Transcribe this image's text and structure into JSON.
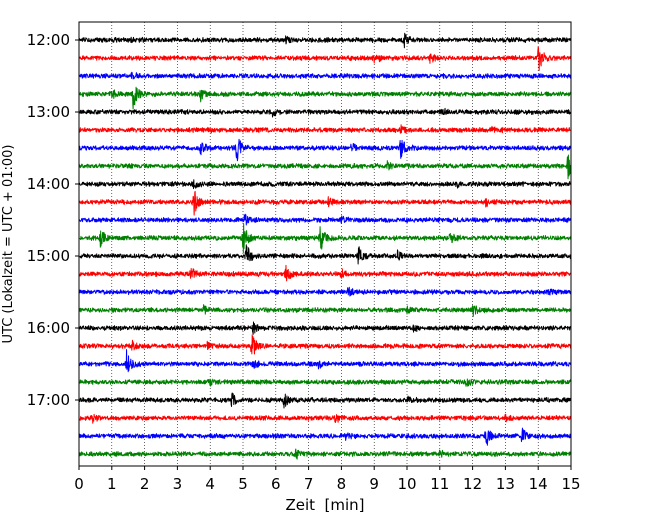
{
  "chart_data": {
    "type": "line",
    "title": "",
    "xlabel": "Zeit  [min]",
    "ylabel": "UTC (Lokalzeit = UTC + 01:00)",
    "xlim": [
      0,
      15
    ],
    "x_ticks": [
      "0",
      "1",
      "2",
      "3",
      "4",
      "5",
      "6",
      "7",
      "8",
      "9",
      "10",
      "11",
      "12",
      "13",
      "14",
      "15"
    ],
    "y_ticks": [
      "12:00",
      "13:00",
      "14:00",
      "15:00",
      "16:00",
      "17:00"
    ],
    "grid": "vertical dotted lines at each minute",
    "trace_interval_minutes": 15,
    "trace_color_cycle": [
      "#000000",
      "#ff0000",
      "#0000ff",
      "#008000"
    ],
    "series": [
      {
        "start": "12:00",
        "color": "#000000",
        "events": [
          {
            "t": 9.9,
            "amp": 0.45
          },
          {
            "t": 6.3,
            "amp": 0.25
          },
          {
            "t": 1.6,
            "amp": 0.2
          }
        ]
      },
      {
        "start": "12:15",
        "color": "#ff0000",
        "events": [
          {
            "t": 14.0,
            "amp": 1.0
          },
          {
            "t": 9.0,
            "amp": 0.35
          },
          {
            "t": 10.7,
            "amp": 0.3
          }
        ]
      },
      {
        "start": "12:30",
        "color": "#0000ff",
        "events": [
          {
            "t": 15.0,
            "amp": 0.55
          },
          {
            "t": 1.6,
            "amp": 0.2
          }
        ]
      },
      {
        "start": "12:45",
        "color": "#008000",
        "events": [
          {
            "t": 1.65,
            "amp": 1.0
          },
          {
            "t": 3.7,
            "amp": 0.5
          },
          {
            "t": 1.0,
            "amp": 0.3
          }
        ]
      },
      {
        "start": "13:00",
        "color": "#000000",
        "events": [
          {
            "t": 5.9,
            "amp": 0.25
          },
          {
            "t": 11.1,
            "amp": 0.2
          }
        ]
      },
      {
        "start": "13:15",
        "color": "#ff0000",
        "events": [
          {
            "t": 9.8,
            "amp": 0.3
          },
          {
            "t": 12.6,
            "amp": 0.25
          },
          {
            "t": 3.9,
            "amp": 0.2
          }
        ]
      },
      {
        "start": "13:30",
        "color": "#0000ff",
        "events": [
          {
            "t": 4.8,
            "amp": 1.0
          },
          {
            "t": 9.8,
            "amp": 0.8
          },
          {
            "t": 3.7,
            "amp": 0.45
          },
          {
            "t": 8.3,
            "amp": 0.3
          }
        ]
      },
      {
        "start": "13:45",
        "color": "#008000",
        "events": [
          {
            "t": 14.9,
            "amp": 1.0
          },
          {
            "t": 9.4,
            "amp": 0.3
          }
        ]
      },
      {
        "start": "14:00",
        "color": "#000000",
        "events": [
          {
            "t": 3.5,
            "amp": 0.35
          },
          {
            "t": 11.5,
            "amp": 0.2
          }
        ]
      },
      {
        "start": "14:15",
        "color": "#ff0000",
        "events": [
          {
            "t": 3.5,
            "amp": 0.8
          },
          {
            "t": 7.6,
            "amp": 0.3
          },
          {
            "t": 12.4,
            "amp": 0.25
          }
        ]
      },
      {
        "start": "14:30",
        "color": "#0000ff",
        "events": [
          {
            "t": 5.05,
            "amp": 0.4
          },
          {
            "t": 8.0,
            "amp": 0.2
          }
        ]
      },
      {
        "start": "14:45",
        "color": "#008000",
        "events": [
          {
            "t": 5.0,
            "amp": 1.0
          },
          {
            "t": 7.35,
            "amp": 0.9
          },
          {
            "t": 0.65,
            "amp": 0.6
          },
          {
            "t": 11.3,
            "amp": 0.4
          }
        ]
      },
      {
        "start": "15:00",
        "color": "#000000",
        "events": [
          {
            "t": 5.1,
            "amp": 0.8
          },
          {
            "t": 8.5,
            "amp": 0.7
          },
          {
            "t": 15.0,
            "amp": 0.5
          },
          {
            "t": 9.7,
            "amp": 0.3
          }
        ]
      },
      {
        "start": "15:15",
        "color": "#ff0000",
        "events": [
          {
            "t": 6.3,
            "amp": 0.55
          },
          {
            "t": 3.4,
            "amp": 0.4
          },
          {
            "t": 8.0,
            "amp": 0.3
          }
        ]
      },
      {
        "start": "15:30",
        "color": "#0000ff",
        "events": [
          {
            "t": 8.2,
            "amp": 0.25
          },
          {
            "t": 14.3,
            "amp": 0.2
          }
        ]
      },
      {
        "start": "15:45",
        "color": "#008000",
        "events": [
          {
            "t": 12.0,
            "amp": 0.35
          },
          {
            "t": 3.8,
            "amp": 0.25
          },
          {
            "t": 10.0,
            "amp": 0.2
          }
        ]
      },
      {
        "start": "16:00",
        "color": "#000000",
        "events": [
          {
            "t": 5.3,
            "amp": 0.35
          },
          {
            "t": 10.2,
            "amp": 0.2
          }
        ]
      },
      {
        "start": "16:15",
        "color": "#ff0000",
        "events": [
          {
            "t": 5.25,
            "amp": 1.0
          },
          {
            "t": 1.6,
            "amp": 0.35
          },
          {
            "t": 3.9,
            "amp": 0.25
          }
        ]
      },
      {
        "start": "16:30",
        "color": "#0000ff",
        "events": [
          {
            "t": 1.45,
            "amp": 0.8
          },
          {
            "t": 5.3,
            "amp": 0.3
          },
          {
            "t": 7.3,
            "amp": 0.2
          }
        ]
      },
      {
        "start": "16:45",
        "color": "#008000",
        "events": [
          {
            "t": 11.8,
            "amp": 0.25
          },
          {
            "t": 4.0,
            "amp": 0.2
          }
        ]
      },
      {
        "start": "17:00",
        "color": "#000000",
        "events": [
          {
            "t": 6.25,
            "amp": 0.5
          },
          {
            "t": 4.65,
            "amp": 0.4
          },
          {
            "t": 10.0,
            "amp": 0.2
          }
        ]
      },
      {
        "start": "17:15",
        "color": "#ff0000",
        "events": [
          {
            "t": 7.8,
            "amp": 0.35
          },
          {
            "t": 0.4,
            "amp": 0.25
          },
          {
            "t": 13.0,
            "amp": 0.25
          }
        ]
      },
      {
        "start": "17:30",
        "color": "#0000ff",
        "events": [
          {
            "t": 12.4,
            "amp": 0.8
          },
          {
            "t": 13.5,
            "amp": 0.5
          },
          {
            "t": 8.1,
            "amp": 0.25
          }
        ]
      },
      {
        "start": "17:45",
        "color": "#008000",
        "events": [
          {
            "t": 6.6,
            "amp": 0.35
          },
          {
            "t": 11.0,
            "amp": 0.2
          }
        ]
      }
    ]
  }
}
